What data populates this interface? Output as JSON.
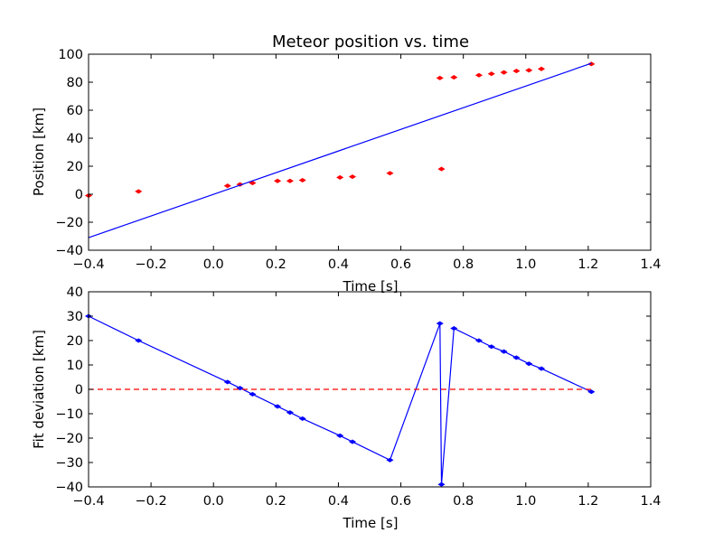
{
  "chart_data": [
    {
      "type": "scatter",
      "title": "Meteor position vs. time",
      "xlabel": "Time [s]",
      "ylabel": "Position [km]",
      "xlim": [
        -0.4,
        1.4
      ],
      "ylim": [
        -40,
        100
      ],
      "xticks": [
        "−0.4",
        "−0.2",
        "0.0",
        "0.2",
        "0.4",
        "0.6",
        "0.8",
        "1.0",
        "1.2",
        "1.4"
      ],
      "yticks": [
        "−40",
        "−20",
        "0",
        "20",
        "40",
        "60",
        "80",
        "100"
      ],
      "grid": false,
      "series": [
        {
          "kind": "points",
          "color": "#ff0000",
          "x": [
            -0.4,
            -0.24,
            0.045,
            0.085,
            0.125,
            0.205,
            0.245,
            0.285,
            0.405,
            0.445,
            0.565,
            0.725,
            0.73,
            0.77,
            0.85,
            0.89,
            0.93,
            0.97,
            1.01,
            1.05,
            1.21
          ],
          "y": [
            -1,
            2,
            6,
            7,
            8,
            9.5,
            9.5,
            10,
            12,
            12.5,
            15,
            83,
            18,
            83.5,
            85,
            86,
            87,
            88,
            88.5,
            89.5,
            93
          ]
        },
        {
          "kind": "line",
          "color": "#0000ff",
          "x": [
            -0.4,
            1.21
          ],
          "y": [
            -31,
            93.5
          ]
        }
      ]
    },
    {
      "type": "line",
      "title": "",
      "xlabel": "Time [s]",
      "ylabel": "Fit deviation [km]",
      "xlim": [
        -0.4,
        1.4
      ],
      "ylim": [
        -40,
        40
      ],
      "xticks": [
        "−0.4",
        "−0.2",
        "0.0",
        "0.2",
        "0.4",
        "0.6",
        "0.8",
        "1.0",
        "1.2",
        "1.4"
      ],
      "yticks": [
        "−40",
        "−30",
        "−20",
        "−10",
        "0",
        "10",
        "20",
        "30",
        "40"
      ],
      "grid": false,
      "series": [
        {
          "kind": "line-markers",
          "color": "#0000ff",
          "x": [
            -0.4,
            -0.24,
            0.045,
            0.085,
            0.125,
            0.205,
            0.245,
            0.285,
            0.405,
            0.445,
            0.565,
            0.725,
            0.73,
            0.77,
            0.85,
            0.89,
            0.93,
            0.97,
            1.01,
            1.05,
            1.21
          ],
          "y": [
            30,
            20,
            3,
            0.5,
            -2,
            -7,
            -9.5,
            -12,
            -19,
            -21.5,
            -29,
            27,
            -39,
            25,
            20,
            17.5,
            15.5,
            13,
            10.5,
            8.5,
            -1
          ]
        },
        {
          "kind": "dashed-line",
          "color": "#ff0000",
          "x": [
            -0.4,
            1.21
          ],
          "y": [
            0,
            0
          ]
        }
      ]
    }
  ]
}
